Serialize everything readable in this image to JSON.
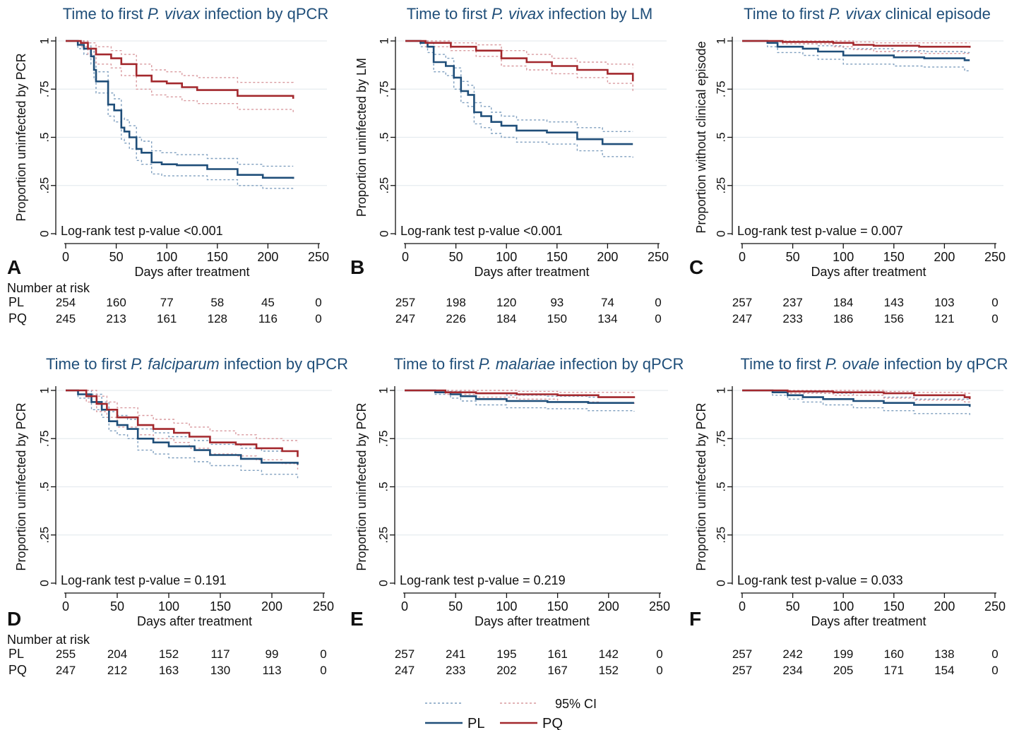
{
  "figure": {
    "x_axis_label": "Days after treatment",
    "number_at_risk_label": "Number at risk",
    "group_labels": [
      "PL",
      "PQ"
    ],
    "legend": {
      "pl_label": "PL",
      "pq_label": "PQ",
      "ci_label": "95% CI"
    },
    "colors": {
      "PL": "#1f4e79",
      "PQ": "#a3282d",
      "PL_ci": "#7f9fbf",
      "PQ_ci": "#d99a9f",
      "title": "#1f4e79",
      "grid": "#e6ecef"
    }
  },
  "chart_data": [
    {
      "panel_letter": "A",
      "type": "line",
      "title_pre": "Time to first ",
      "title_italic": "P. vivax",
      "title_post": " infection by qPCR",
      "ylabel": "Proportion uninfected by PCR",
      "annotation": "Log-rank test p-value <0.001",
      "xlim": [
        0,
        250
      ],
      "ylim": [
        0,
        1
      ],
      "xticks": [
        0,
        50,
        100,
        150,
        200,
        250
      ],
      "yticks": [
        0,
        0.25,
        0.5,
        0.75,
        1
      ],
      "ytick_labels": [
        "0",
        ".25",
        ".5",
        ".75",
        "1"
      ],
      "series": [
        {
          "name": "PL",
          "x": [
            0,
            12,
            18,
            25,
            28,
            30,
            42,
            48,
            55,
            58,
            63,
            70,
            75,
            85,
            95,
            110,
            140,
            170,
            195,
            225
          ],
          "y": [
            1,
            0.98,
            0.96,
            0.92,
            0.85,
            0.79,
            0.67,
            0.64,
            0.55,
            0.53,
            0.5,
            0.44,
            0.42,
            0.37,
            0.36,
            0.355,
            0.335,
            0.305,
            0.29,
            0.285
          ],
          "ci_upper": [
            1,
            1,
            0.99,
            0.96,
            0.9,
            0.84,
            0.73,
            0.7,
            0.6,
            0.59,
            0.56,
            0.5,
            0.48,
            0.43,
            0.42,
            0.41,
            0.39,
            0.36,
            0.35,
            0.35
          ],
          "ci_lower": [
            1,
            0.96,
            0.93,
            0.88,
            0.8,
            0.73,
            0.61,
            0.58,
            0.49,
            0.47,
            0.44,
            0.38,
            0.36,
            0.31,
            0.3,
            0.3,
            0.28,
            0.25,
            0.235,
            0.225
          ]
        },
        {
          "name": "PQ",
          "x": [
            0,
            15,
            22,
            30,
            45,
            55,
            70,
            85,
            100,
            115,
            130,
            170,
            225
          ],
          "y": [
            1,
            0.99,
            0.96,
            0.93,
            0.91,
            0.88,
            0.82,
            0.79,
            0.78,
            0.76,
            0.745,
            0.715,
            0.7
          ],
          "ci_upper": [
            1,
            1,
            0.99,
            0.97,
            0.95,
            0.93,
            0.88,
            0.85,
            0.84,
            0.82,
            0.81,
            0.785,
            0.775
          ],
          "ci_lower": [
            1,
            0.97,
            0.93,
            0.88,
            0.86,
            0.82,
            0.75,
            0.72,
            0.71,
            0.69,
            0.675,
            0.645,
            0.63
          ]
        }
      ],
      "number_at_risk": {
        "x": [
          0,
          50,
          100,
          150,
          200,
          250
        ],
        "PL": [
          254,
          160,
          77,
          58,
          45,
          0
        ],
        "PQ": [
          245,
          213,
          161,
          128,
          116,
          0
        ]
      }
    },
    {
      "panel_letter": "B",
      "type": "line",
      "title_pre": "Time to first ",
      "title_italic": "P. vivax",
      "title_post": " infection by LM",
      "ylabel": "Proportion uninfected by LM",
      "annotation": "Log-rank test p-value <0.001",
      "xlim": [
        0,
        250
      ],
      "ylim": [
        0,
        1
      ],
      "xticks": [
        0,
        50,
        100,
        150,
        200,
        250
      ],
      "yticks": [
        0,
        0.25,
        0.5,
        0.75,
        1
      ],
      "ytick_labels": [
        "0",
        ".25",
        ".5",
        ".75",
        "1"
      ],
      "series": [
        {
          "name": "PL",
          "x": [
            0,
            15,
            22,
            28,
            40,
            48,
            55,
            62,
            68,
            75,
            85,
            95,
            110,
            140,
            170,
            195,
            225
          ],
          "y": [
            1,
            0.99,
            0.97,
            0.89,
            0.87,
            0.81,
            0.74,
            0.72,
            0.63,
            0.61,
            0.58,
            0.56,
            0.535,
            0.525,
            0.49,
            0.465,
            0.465
          ],
          "ci_upper": [
            1,
            1,
            0.99,
            0.93,
            0.91,
            0.86,
            0.79,
            0.77,
            0.68,
            0.66,
            0.63,
            0.61,
            0.59,
            0.58,
            0.55,
            0.53,
            0.53
          ],
          "ci_lower": [
            1,
            0.97,
            0.94,
            0.84,
            0.82,
            0.75,
            0.68,
            0.66,
            0.57,
            0.55,
            0.52,
            0.5,
            0.475,
            0.465,
            0.43,
            0.4,
            0.395
          ]
        },
        {
          "name": "PQ",
          "x": [
            0,
            20,
            45,
            70,
            95,
            120,
            145,
            170,
            200,
            225
          ],
          "y": [
            1,
            0.99,
            0.97,
            0.95,
            0.91,
            0.89,
            0.87,
            0.85,
            0.83,
            0.79
          ],
          "ci_upper": [
            1,
            1,
            0.99,
            0.98,
            0.95,
            0.93,
            0.91,
            0.89,
            0.88,
            0.86
          ],
          "ci_lower": [
            1,
            0.97,
            0.95,
            0.92,
            0.87,
            0.85,
            0.83,
            0.81,
            0.78,
            0.73
          ]
        }
      ],
      "number_at_risk": {
        "x": [
          0,
          50,
          100,
          150,
          200,
          250
        ],
        "PL": [
          257,
          198,
          120,
          93,
          74,
          0
        ],
        "PQ": [
          247,
          226,
          184,
          150,
          134,
          0
        ]
      }
    },
    {
      "panel_letter": "C",
      "type": "line",
      "title_pre": "Time to first ",
      "title_italic": "P. vivax",
      "title_post": " clinical episode",
      "ylabel": "Proportion without clinical episode",
      "annotation": "Log-rank test p-value = 0.007",
      "xlim": [
        0,
        250
      ],
      "ylim": [
        0,
        1
      ],
      "xticks": [
        0,
        50,
        100,
        150,
        200,
        250
      ],
      "yticks": [
        0,
        0.25,
        0.5,
        0.75,
        1
      ],
      "ytick_labels": [
        "0",
        ".25",
        ".5",
        ".75",
        "1"
      ],
      "series": [
        {
          "name": "PL",
          "x": [
            0,
            25,
            35,
            60,
            75,
            100,
            150,
            180,
            220,
            225
          ],
          "y": [
            1,
            0.99,
            0.97,
            0.96,
            0.945,
            0.925,
            0.915,
            0.91,
            0.9,
            0.9
          ],
          "ci_upper": [
            1,
            1,
            0.995,
            0.985,
            0.975,
            0.96,
            0.95,
            0.945,
            0.94,
            0.94
          ],
          "ci_lower": [
            1,
            0.97,
            0.94,
            0.925,
            0.905,
            0.88,
            0.87,
            0.865,
            0.845,
            0.845
          ]
        },
        {
          "name": "PQ",
          "x": [
            0,
            40,
            90,
            110,
            130,
            175,
            225
          ],
          "y": [
            1,
            0.995,
            0.99,
            0.98,
            0.975,
            0.97,
            0.965
          ],
          "ci_upper": [
            1,
            1,
            1,
            0.995,
            0.99,
            0.99,
            0.99
          ],
          "ci_lower": [
            1,
            0.985,
            0.97,
            0.955,
            0.945,
            0.935,
            0.93
          ]
        }
      ],
      "number_at_risk": {
        "x": [
          0,
          50,
          100,
          150,
          200,
          250
        ],
        "PL": [
          257,
          237,
          184,
          143,
          103,
          0
        ],
        "PQ": [
          247,
          233,
          186,
          156,
          121,
          0
        ]
      }
    },
    {
      "panel_letter": "D",
      "type": "line",
      "title_pre": "Time to first ",
      "title_italic": "P. falciparum",
      "title_post": " infection by qPCR",
      "ylabel": "Proportion uninfected by PCR",
      "annotation": "Log-rank test p-value = 0.191",
      "xlim": [
        0,
        250
      ],
      "ylim": [
        0,
        1
      ],
      "xticks": [
        0,
        50,
        100,
        150,
        200,
        250
      ],
      "yticks": [
        0,
        0.25,
        0.5,
        0.75,
        1
      ],
      "ytick_labels": [
        "0",
        ".25",
        ".5",
        ".75",
        "1"
      ],
      "series": [
        {
          "name": "PL",
          "x": [
            0,
            12,
            25,
            35,
            42,
            50,
            60,
            70,
            85,
            100,
            125,
            140,
            170,
            190,
            225
          ],
          "y": [
            1,
            0.98,
            0.94,
            0.9,
            0.84,
            0.82,
            0.8,
            0.75,
            0.73,
            0.71,
            0.69,
            0.665,
            0.645,
            0.625,
            0.615
          ],
          "ci_upper": [
            1,
            1,
            0.98,
            0.94,
            0.89,
            0.87,
            0.85,
            0.8,
            0.78,
            0.76,
            0.74,
            0.72,
            0.7,
            0.685,
            0.68
          ],
          "ci_lower": [
            1,
            0.96,
            0.9,
            0.86,
            0.79,
            0.77,
            0.75,
            0.69,
            0.67,
            0.65,
            0.63,
            0.61,
            0.585,
            0.565,
            0.545
          ]
        },
        {
          "name": "PQ",
          "x": [
            0,
            20,
            30,
            40,
            50,
            70,
            85,
            105,
            120,
            140,
            165,
            185,
            210,
            225
          ],
          "y": [
            1,
            0.97,
            0.93,
            0.9,
            0.86,
            0.82,
            0.8,
            0.78,
            0.76,
            0.73,
            0.72,
            0.7,
            0.685,
            0.655
          ],
          "ci_upper": [
            1,
            1,
            0.97,
            0.94,
            0.91,
            0.87,
            0.85,
            0.83,
            0.81,
            0.79,
            0.77,
            0.75,
            0.74,
            0.73
          ],
          "ci_lower": [
            1,
            0.94,
            0.89,
            0.86,
            0.81,
            0.77,
            0.75,
            0.73,
            0.7,
            0.67,
            0.66,
            0.64,
            0.62,
            0.59
          ]
        }
      ],
      "number_at_risk": {
        "x": [
          0,
          50,
          100,
          150,
          200,
          250
        ],
        "PL": [
          255,
          204,
          152,
          117,
          99,
          0
        ],
        "PQ": [
          247,
          212,
          163,
          130,
          113,
          0
        ]
      }
    },
    {
      "panel_letter": "E",
      "type": "line",
      "title_pre": "Time to first ",
      "title_italic": "P. malariae",
      "title_post": " infection by qPCR",
      "ylabel": "Proportion uninfected by PCR",
      "annotation": "Log-rank test p-value = 0.219",
      "xlim": [
        0,
        250
      ],
      "ylim": [
        0,
        1
      ],
      "xticks": [
        0,
        50,
        100,
        150,
        200,
        250
      ],
      "yticks": [
        0,
        0.25,
        0.5,
        0.75,
        1
      ],
      "ytick_labels": [
        "0",
        ".25",
        ".5",
        ".75",
        "1"
      ],
      "series": [
        {
          "name": "PL",
          "x": [
            0,
            30,
            45,
            55,
            70,
            100,
            140,
            180,
            225
          ],
          "y": [
            1,
            0.99,
            0.98,
            0.97,
            0.955,
            0.945,
            0.94,
            0.935,
            0.935
          ],
          "ci_upper": [
            1,
            1,
            0.995,
            0.99,
            0.985,
            0.975,
            0.97,
            0.965,
            0.965
          ],
          "ci_lower": [
            1,
            0.98,
            0.96,
            0.945,
            0.925,
            0.91,
            0.905,
            0.895,
            0.89
          ]
        },
        {
          "name": "PQ",
          "x": [
            0,
            40,
            70,
            110,
            150,
            190,
            225
          ],
          "y": [
            1,
            0.99,
            0.985,
            0.98,
            0.975,
            0.965,
            0.96
          ],
          "ci_upper": [
            1,
            1,
            1,
            0.995,
            0.99,
            0.99,
            0.985
          ],
          "ci_lower": [
            1,
            0.98,
            0.965,
            0.955,
            0.94,
            0.935,
            0.93
          ]
        }
      ],
      "number_at_risk": {
        "x": [
          0,
          50,
          100,
          150,
          200,
          250
        ],
        "PL": [
          257,
          241,
          195,
          161,
          142,
          0
        ],
        "PQ": [
          247,
          233,
          202,
          167,
          152,
          0
        ]
      }
    },
    {
      "panel_letter": "F",
      "type": "line",
      "title_pre": "Time to first ",
      "title_italic": "P. ovale",
      "title_post": " infection by qPCR",
      "ylabel": "Proportion uninfected by PCR",
      "annotation": "Log-rank test p-value = 0.033",
      "xlim": [
        0,
        250
      ],
      "ylim": [
        0,
        1
      ],
      "xticks": [
        0,
        50,
        100,
        150,
        200,
        250
      ],
      "yticks": [
        0,
        0.25,
        0.5,
        0.75,
        1
      ],
      "ytick_labels": [
        "0",
        ".25",
        ".5",
        ".75",
        "1"
      ],
      "series": [
        {
          "name": "PL",
          "x": [
            0,
            30,
            45,
            60,
            80,
            110,
            140,
            170,
            225
          ],
          "y": [
            1,
            0.99,
            0.975,
            0.965,
            0.955,
            0.945,
            0.935,
            0.925,
            0.915
          ],
          "ci_upper": [
            1,
            1,
            0.995,
            0.99,
            0.985,
            0.975,
            0.965,
            0.955,
            0.95
          ],
          "ci_lower": [
            1,
            0.975,
            0.955,
            0.94,
            0.925,
            0.91,
            0.895,
            0.88,
            0.87
          ]
        },
        {
          "name": "PQ",
          "x": [
            0,
            45,
            90,
            140,
            170,
            220,
            225
          ],
          "y": [
            1,
            0.995,
            0.99,
            0.985,
            0.975,
            0.965,
            0.955
          ],
          "ci_upper": [
            1,
            1,
            1,
            0.995,
            0.99,
            0.985,
            0.98
          ],
          "ci_lower": [
            1,
            0.985,
            0.975,
            0.96,
            0.95,
            0.94,
            0.935
          ]
        }
      ],
      "number_at_risk": {
        "x": [
          0,
          50,
          100,
          150,
          200,
          250
        ],
        "PL": [
          257,
          242,
          199,
          160,
          138,
          0
        ],
        "PQ": [
          257,
          234,
          205,
          171,
          154,
          0
        ]
      }
    }
  ]
}
